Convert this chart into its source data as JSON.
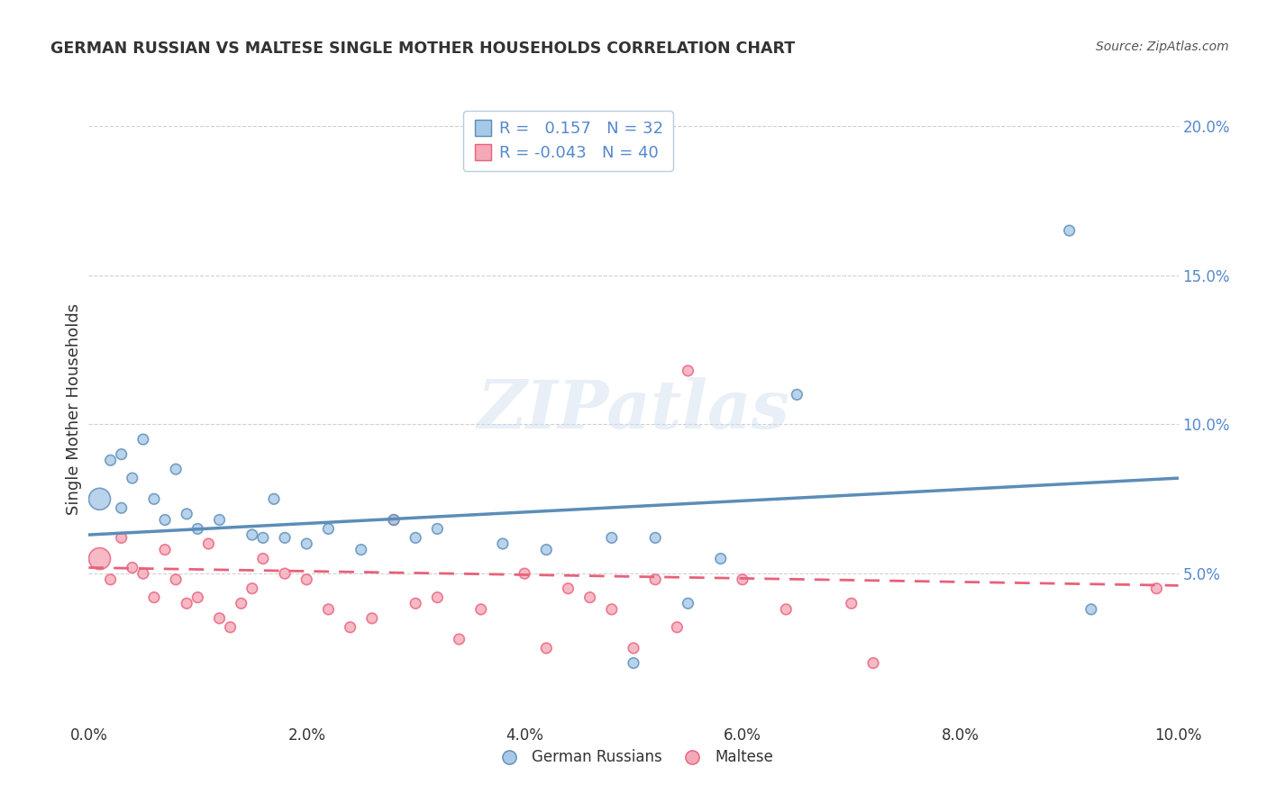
{
  "title": "GERMAN RUSSIAN VS MALTESE SINGLE MOTHER HOUSEHOLDS CORRELATION CHART",
  "source": "Source: ZipAtlas.com",
  "ylabel": "Single Mother Households",
  "xlabel": "",
  "xlim": [
    0.0,
    0.1
  ],
  "ylim": [
    0.0,
    0.21
  ],
  "xticks": [
    0.0,
    0.02,
    0.04,
    0.06,
    0.08,
    0.1
  ],
  "yticks": [
    0.0,
    0.05,
    0.1,
    0.15,
    0.2
  ],
  "ytick_labels_left": [
    "",
    "",
    "",
    "",
    ""
  ],
  "ytick_labels_right": [
    "",
    "5.0%",
    "10.0%",
    "15.0%",
    "20.0%"
  ],
  "xtick_labels": [
    "0.0%",
    "2.0%",
    "4.0%",
    "6.0%",
    "8.0%",
    "10.0%"
  ],
  "blue_color": "#5B8DB8",
  "pink_color": "#E8617A",
  "blue_fill": "#A8C8E8",
  "pink_fill": "#F4A8B8",
  "legend_bottom_blue": "German Russians",
  "legend_bottom_pink": "Maltese",
  "blue_points_x": [
    0.001,
    0.002,
    0.003,
    0.003,
    0.004,
    0.005,
    0.006,
    0.007,
    0.008,
    0.009,
    0.01,
    0.012,
    0.015,
    0.016,
    0.017,
    0.018,
    0.02,
    0.022,
    0.025,
    0.028,
    0.03,
    0.032,
    0.038,
    0.042,
    0.048,
    0.05,
    0.052,
    0.055,
    0.058,
    0.065,
    0.09,
    0.092
  ],
  "blue_points_y": [
    0.075,
    0.088,
    0.072,
    0.09,
    0.082,
    0.095,
    0.075,
    0.068,
    0.085,
    0.07,
    0.065,
    0.068,
    0.063,
    0.062,
    0.075,
    0.062,
    0.06,
    0.065,
    0.058,
    0.068,
    0.062,
    0.065,
    0.06,
    0.058,
    0.062,
    0.02,
    0.062,
    0.04,
    0.055,
    0.11,
    0.165,
    0.038
  ],
  "blue_large_idx": [
    0
  ],
  "pink_points_x": [
    0.001,
    0.002,
    0.003,
    0.004,
    0.005,
    0.006,
    0.007,
    0.008,
    0.009,
    0.01,
    0.011,
    0.012,
    0.013,
    0.014,
    0.015,
    0.016,
    0.018,
    0.02,
    0.022,
    0.024,
    0.026,
    0.028,
    0.03,
    0.032,
    0.034,
    0.036,
    0.04,
    0.042,
    0.044,
    0.046,
    0.048,
    0.05,
    0.052,
    0.054,
    0.055,
    0.06,
    0.064,
    0.07,
    0.072,
    0.098
  ],
  "pink_points_y": [
    0.055,
    0.048,
    0.062,
    0.052,
    0.05,
    0.042,
    0.058,
    0.048,
    0.04,
    0.042,
    0.06,
    0.035,
    0.032,
    0.04,
    0.045,
    0.055,
    0.05,
    0.048,
    0.038,
    0.032,
    0.035,
    0.068,
    0.04,
    0.042,
    0.028,
    0.038,
    0.05,
    0.025,
    0.045,
    0.042,
    0.038,
    0.025,
    0.048,
    0.032,
    0.118,
    0.048,
    0.038,
    0.04,
    0.02,
    0.045
  ],
  "pink_large_idx": [
    0
  ],
  "watermark_text": "ZIPatlas",
  "background_color": "#FFFFFF",
  "grid_color": "#CCCCCC",
  "title_color": "#333333",
  "source_color": "#555555",
  "right_axis_color": "#5588CC",
  "trend_blue_start_y": 0.063,
  "trend_blue_end_y": 0.082,
  "trend_pink_start_y": 0.052,
  "trend_pink_end_y": 0.046
}
